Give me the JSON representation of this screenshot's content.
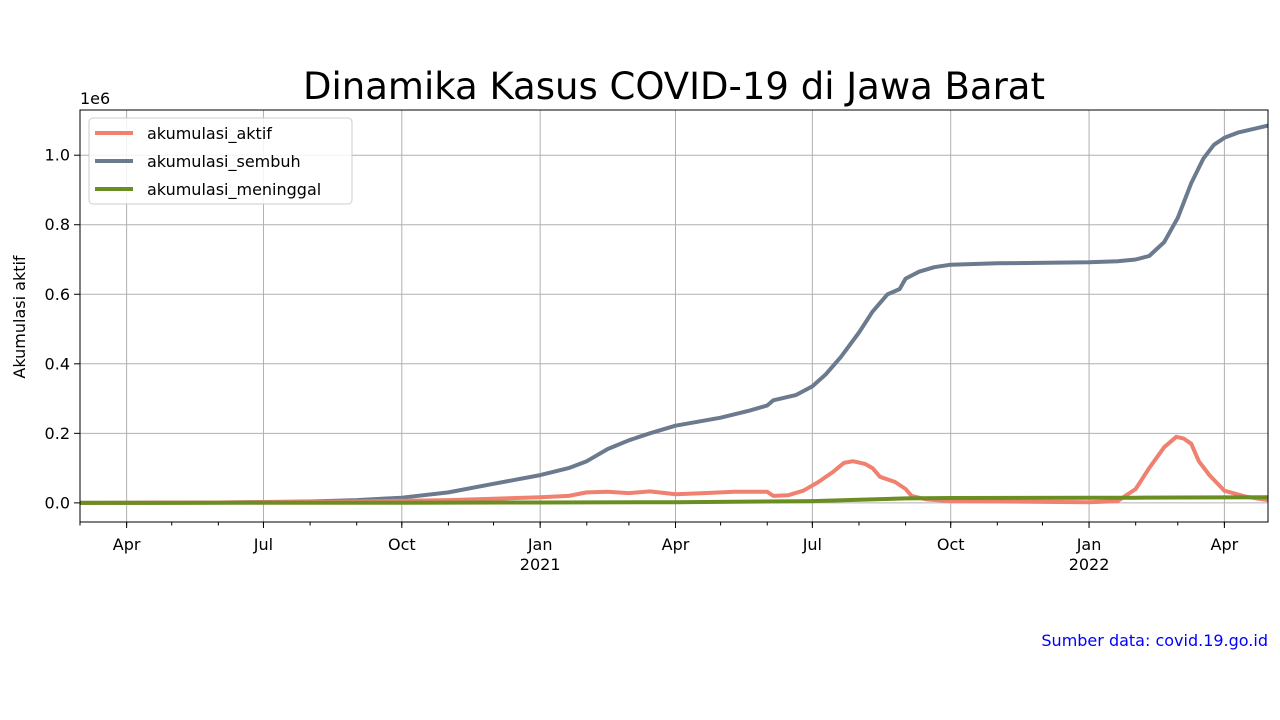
{
  "chart_data": {
    "type": "line",
    "title": "Dinamika Kasus COVID-19 di Jawa Barat",
    "xlabel": "",
    "ylabel": "Akumulasi aktif",
    "y_multiplier_label": "1e6",
    "xlim": [
      "2020-03-01",
      "2022-04-30"
    ],
    "ylim": [
      -0.055,
      1.13
    ],
    "y_ticks": [
      0.0,
      0.2,
      0.4,
      0.6,
      0.8,
      1.0
    ],
    "y_tick_labels": [
      "0.0",
      "0.2",
      "0.4",
      "0.6",
      "0.8",
      "1.0"
    ],
    "x_ticks": [
      {
        "date": "2020-04-01",
        "label": "Apr",
        "sublabel": ""
      },
      {
        "date": "2020-07-01",
        "label": "Jul",
        "sublabel": ""
      },
      {
        "date": "2020-10-01",
        "label": "Oct",
        "sublabel": ""
      },
      {
        "date": "2021-01-01",
        "label": "Jan",
        "sublabel": "2021"
      },
      {
        "date": "2021-04-01",
        "label": "Apr",
        "sublabel": ""
      },
      {
        "date": "2021-07-01",
        "label": "Jul",
        "sublabel": ""
      },
      {
        "date": "2021-10-01",
        "label": "Oct",
        "sublabel": ""
      },
      {
        "date": "2022-01-01",
        "label": "Jan",
        "sublabel": "2022"
      },
      {
        "date": "2022-04-01",
        "label": "Apr",
        "sublabel": ""
      }
    ],
    "grid": true,
    "legend_position": "upper-left",
    "series": [
      {
        "name": "akumulasi_aktif",
        "color": "#f08070",
        "points": [
          [
            "2020-03-01",
            0.0
          ],
          [
            "2020-06-01",
            0.001
          ],
          [
            "2020-09-01",
            0.004
          ],
          [
            "2020-11-01",
            0.008
          ],
          [
            "2020-12-01",
            0.012
          ],
          [
            "2021-01-01",
            0.016
          ],
          [
            "2021-01-20",
            0.02
          ],
          [
            "2021-02-01",
            0.03
          ],
          [
            "2021-02-15",
            0.032
          ],
          [
            "2021-03-01",
            0.028
          ],
          [
            "2021-03-15",
            0.033
          ],
          [
            "2021-04-01",
            0.025
          ],
          [
            "2021-04-20",
            0.028
          ],
          [
            "2021-05-10",
            0.032
          ],
          [
            "2021-06-01",
            0.032
          ],
          [
            "2021-06-05",
            0.02
          ],
          [
            "2021-06-15",
            0.022
          ],
          [
            "2021-06-25",
            0.035
          ],
          [
            "2021-07-05",
            0.06
          ],
          [
            "2021-07-15",
            0.09
          ],
          [
            "2021-07-22",
            0.115
          ],
          [
            "2021-07-28",
            0.12
          ],
          [
            "2021-08-05",
            0.112
          ],
          [
            "2021-08-10",
            0.1
          ],
          [
            "2021-08-15",
            0.075
          ],
          [
            "2021-08-25",
            0.06
          ],
          [
            "2021-09-01",
            0.04
          ],
          [
            "2021-09-05",
            0.02
          ],
          [
            "2021-09-15",
            0.01
          ],
          [
            "2021-10-01",
            0.005
          ],
          [
            "2022-01-01",
            0.002
          ],
          [
            "2022-01-20",
            0.005
          ],
          [
            "2022-02-01",
            0.04
          ],
          [
            "2022-02-10",
            0.1
          ],
          [
            "2022-02-20",
            0.16
          ],
          [
            "2022-02-28",
            0.19
          ],
          [
            "2022-03-05",
            0.185
          ],
          [
            "2022-03-10",
            0.17
          ],
          [
            "2022-03-15",
            0.12
          ],
          [
            "2022-03-22",
            0.08
          ],
          [
            "2022-04-01",
            0.035
          ],
          [
            "2022-04-15",
            0.018
          ],
          [
            "2022-04-30",
            0.008
          ]
        ]
      },
      {
        "name": "akumulasi_sembuh",
        "color": "#6b7a8f",
        "points": [
          [
            "2020-03-01",
            0.0
          ],
          [
            "2020-06-01",
            0.001
          ],
          [
            "2020-08-01",
            0.004
          ],
          [
            "2020-09-01",
            0.008
          ],
          [
            "2020-10-01",
            0.015
          ],
          [
            "2020-11-01",
            0.03
          ],
          [
            "2020-12-01",
            0.055
          ],
          [
            "2021-01-01",
            0.08
          ],
          [
            "2021-01-20",
            0.1
          ],
          [
            "2021-02-01",
            0.12
          ],
          [
            "2021-02-15",
            0.155
          ],
          [
            "2021-03-01",
            0.18
          ],
          [
            "2021-03-15",
            0.2
          ],
          [
            "2021-04-01",
            0.222
          ],
          [
            "2021-05-01",
            0.245
          ],
          [
            "2021-05-20",
            0.265
          ],
          [
            "2021-06-01",
            0.28
          ],
          [
            "2021-06-05",
            0.295
          ],
          [
            "2021-06-20",
            0.31
          ],
          [
            "2021-07-01",
            0.335
          ],
          [
            "2021-07-10",
            0.37
          ],
          [
            "2021-07-20",
            0.42
          ],
          [
            "2021-08-01",
            0.49
          ],
          [
            "2021-08-10",
            0.55
          ],
          [
            "2021-08-20",
            0.6
          ],
          [
            "2021-08-28",
            0.615
          ],
          [
            "2021-09-01",
            0.645
          ],
          [
            "2021-09-10",
            0.665
          ],
          [
            "2021-09-20",
            0.678
          ],
          [
            "2021-10-01",
            0.685
          ],
          [
            "2021-11-01",
            0.689
          ],
          [
            "2022-01-01",
            0.692
          ],
          [
            "2022-01-20",
            0.695
          ],
          [
            "2022-02-01",
            0.7
          ],
          [
            "2022-02-10",
            0.71
          ],
          [
            "2022-02-20",
            0.75
          ],
          [
            "2022-03-01",
            0.82
          ],
          [
            "2022-03-10",
            0.92
          ],
          [
            "2022-03-18",
            0.99
          ],
          [
            "2022-03-25",
            1.03
          ],
          [
            "2022-04-01",
            1.05
          ],
          [
            "2022-04-10",
            1.065
          ],
          [
            "2022-04-20",
            1.075
          ],
          [
            "2022-04-30",
            1.085
          ]
        ]
      },
      {
        "name": "akumulasi_meninggal",
        "color": "#6b8e23",
        "points": [
          [
            "2020-03-01",
            0.0
          ],
          [
            "2020-10-01",
            0.0005
          ],
          [
            "2021-01-01",
            0.001
          ],
          [
            "2021-04-01",
            0.002
          ],
          [
            "2021-07-01",
            0.005
          ],
          [
            "2021-08-01",
            0.009
          ],
          [
            "2021-09-01",
            0.013
          ],
          [
            "2021-10-01",
            0.014
          ],
          [
            "2022-01-01",
            0.0145
          ],
          [
            "2022-02-01",
            0.015
          ],
          [
            "2022-03-01",
            0.0155
          ],
          [
            "2022-04-30",
            0.016
          ]
        ]
      }
    ]
  },
  "source_note": "Sumber data: covid.19.go.id"
}
